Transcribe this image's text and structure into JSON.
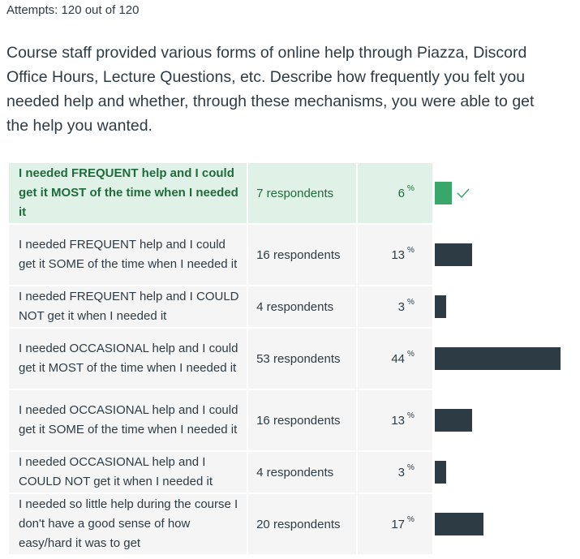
{
  "header": {
    "attempts": "Attempts: 120 out of 120"
  },
  "question": {
    "text": "Course staff provided various forms of online help through Piazza, Discord Office Hours, Lecture Questions, etc. Describe how frequently you felt you needed help and whether, through these mechanisms, you were able to get the help you wanted."
  },
  "answers": [
    {
      "label": "I needed FREQUENT help and I could get it MOST of the time when I needed it",
      "respondents": "7 respondents",
      "percent": "6",
      "percent_value": 6,
      "correct": true
    },
    {
      "label": "I needed FREQUENT help and I could get it SOME of the time when I needed it",
      "respondents": "16 respondents",
      "percent": "13",
      "percent_value": 13,
      "correct": false
    },
    {
      "label": "I needed FREQUENT help and I COULD NOT get it when I needed it",
      "respondents": "4 respondents",
      "percent": "3",
      "percent_value": 3,
      "correct": false
    },
    {
      "label": "I needed OCCASIONAL help and I could get it MOST of the time when I needed it",
      "respondents": "53 respondents",
      "percent": "44",
      "percent_value": 44,
      "correct": false
    },
    {
      "label": "I needed OCCASIONAL help and I could get it SOME of the time when I needed it",
      "respondents": "16 respondents",
      "percent": "13",
      "percent_value": 13,
      "correct": false
    },
    {
      "label": "I needed OCCASIONAL help and I COULD NOT get it when I needed it",
      "respondents": "4 respondents",
      "percent": "3",
      "percent_value": 3,
      "correct": false
    },
    {
      "label": "I needed so little help during the course I don't have a good sense of how easy/hard it was to get",
      "respondents": "20 respondents",
      "percent": "17",
      "percent_value": 17,
      "correct": false
    }
  ],
  "percent_symbol": "%",
  "icons": {
    "correct_marker": "check-icon"
  },
  "colors": {
    "correct_bg": "#e0f2e8",
    "correct_bar": "#3aa76a",
    "bar": "#2d3b45",
    "row_bg": "#f5f5f5"
  }
}
